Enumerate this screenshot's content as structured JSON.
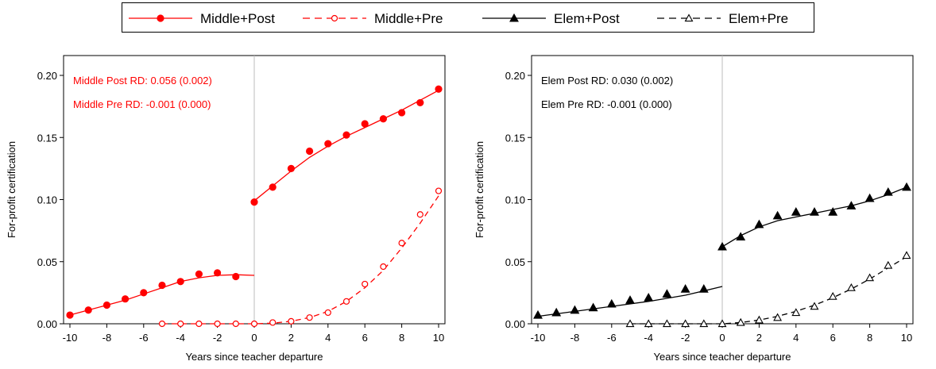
{
  "legend": {
    "placement": "top-center",
    "entries": [
      {
        "label": "Middle+Post",
        "color": "#ff0000",
        "line": "solid",
        "marker": "filled-circle"
      },
      {
        "label": "Middle+Pre",
        "color": "#ff0000",
        "line": "dashed",
        "marker": "hollow-circle"
      },
      {
        "label": "Elem+Post",
        "color": "#000000",
        "line": "solid",
        "marker": "filled-triangle"
      },
      {
        "label": "Elem+Pre",
        "color": "#000000",
        "line": "dashed",
        "marker": "hollow-triangle"
      }
    ]
  },
  "chart_data": [
    {
      "type": "scatter",
      "panel": "left",
      "xlabel": "Years since teacher departure",
      "ylabel": "For-profit certification",
      "xlim": [
        -10,
        10
      ],
      "ylim": [
        0,
        0.2
      ],
      "xticks": [
        -10,
        -8,
        -6,
        -4,
        -2,
        0,
        2,
        4,
        6,
        8,
        10
      ],
      "yticks": [
        "0.00",
        "0.05",
        "0.10",
        "0.15",
        "0.20"
      ],
      "vline": 0,
      "grid": false,
      "annotations": [
        "Middle Post RD: 0.056 (0.002)",
        "Middle Pre RD: -0.001 (0.000)"
      ],
      "annotation_color": "#ff0000",
      "series": [
        {
          "name": "Middle+Post",
          "color": "#ff0000",
          "marker": "filled-circle",
          "line": "solid",
          "x": [
            -10,
            -9,
            -8,
            -7,
            -6,
            -5,
            -4,
            -3,
            -2,
            -1,
            0,
            1,
            2,
            3,
            4,
            5,
            6,
            7,
            8,
            9,
            10
          ],
          "y": [
            0.007,
            0.011,
            0.015,
            0.02,
            0.025,
            0.031,
            0.034,
            0.04,
            0.041,
            0.038,
            0.098,
            0.11,
            0.125,
            0.139,
            0.145,
            0.152,
            0.161,
            0.165,
            0.17,
            0.178,
            0.189
          ],
          "fit_x": [
            -10,
            -9,
            -8,
            -7,
            -6,
            -5,
            -4,
            -3,
            -2,
            -1,
            0
          ],
          "fit_y": [
            0.007,
            0.011,
            0.015,
            0.019,
            0.024,
            0.029,
            0.034,
            0.037,
            0.039,
            0.0395,
            0.039
          ],
          "fit2_x": [
            0,
            1,
            2,
            3,
            4,
            5,
            6,
            7,
            8,
            9,
            10
          ],
          "fit2_y": [
            0.099,
            0.111,
            0.123,
            0.134,
            0.143,
            0.151,
            0.158,
            0.165,
            0.172,
            0.18,
            0.188
          ]
        },
        {
          "name": "Middle+Pre",
          "color": "#ff0000",
          "marker": "hollow-circle",
          "line": "dashed",
          "x": [
            -5,
            -4,
            -3,
            -2,
            -1,
            0,
            1,
            2,
            3,
            4,
            5,
            6,
            7,
            8,
            9,
            10
          ],
          "y": [
            0.0,
            0.0,
            0.0,
            0.0,
            0.0,
            0.0,
            0.001,
            0.002,
            0.005,
            0.009,
            0.018,
            0.032,
            0.046,
            0.065,
            0.088,
            0.107
          ],
          "fit_x": [
            -5,
            -4,
            -3,
            -2,
            -1,
            0,
            1,
            2,
            3,
            4,
            5,
            6,
            7,
            8,
            9,
            10
          ],
          "fit_y": [
            0.0,
            0.0,
            0.0,
            0.0,
            0.0,
            0.0,
            0.0005,
            0.002,
            0.005,
            0.01,
            0.018,
            0.029,
            0.043,
            0.061,
            0.081,
            0.103
          ]
        }
      ]
    },
    {
      "type": "scatter",
      "panel": "right",
      "xlabel": "Years since teacher departure",
      "ylabel": "For-profit certification",
      "xlim": [
        -10,
        10
      ],
      "ylim": [
        0,
        0.2
      ],
      "xticks": [
        -10,
        -8,
        -6,
        -4,
        -2,
        0,
        2,
        4,
        6,
        8,
        10
      ],
      "yticks": [
        "0.00",
        "0.05",
        "0.10",
        "0.15",
        "0.20"
      ],
      "vline": 0,
      "grid": false,
      "annotations": [
        "Elem Post RD: 0.030 (0.002)",
        "Elem Pre RD: -0.001 (0.000)"
      ],
      "annotation_color": "#000000",
      "series": [
        {
          "name": "Elem+Post",
          "color": "#000000",
          "marker": "filled-triangle",
          "line": "solid",
          "x": [
            -10,
            -9,
            -8,
            -7,
            -6,
            -5,
            -4,
            -3,
            -2,
            -1,
            0,
            1,
            2,
            3,
            4,
            5,
            6,
            7,
            8,
            9,
            10
          ],
          "y": [
            0.007,
            0.009,
            0.011,
            0.013,
            0.016,
            0.019,
            0.021,
            0.024,
            0.028,
            0.028,
            0.062,
            0.07,
            0.08,
            0.087,
            0.09,
            0.09,
            0.09,
            0.095,
            0.101,
            0.106,
            0.11
          ],
          "fit_x": [
            -10,
            -8,
            -6,
            -4,
            -2,
            0
          ],
          "fit_y": [
            0.006,
            0.01,
            0.014,
            0.018,
            0.023,
            0.03
          ],
          "fit2_x": [
            0,
            1,
            2,
            3,
            4,
            5,
            6,
            7,
            8,
            9,
            10
          ],
          "fit2_y": [
            0.062,
            0.071,
            0.078,
            0.083,
            0.086,
            0.089,
            0.092,
            0.095,
            0.099,
            0.104,
            0.11
          ]
        },
        {
          "name": "Elem+Pre",
          "color": "#000000",
          "marker": "hollow-triangle",
          "line": "dashed",
          "x": [
            -5,
            -4,
            -3,
            -2,
            -1,
            0,
            1,
            2,
            3,
            4,
            5,
            6,
            7,
            8,
            9,
            10
          ],
          "y": [
            0.0,
            0.0,
            0.0,
            0.0,
            0.0,
            0.0,
            0.001,
            0.003,
            0.005,
            0.009,
            0.014,
            0.022,
            0.029,
            0.037,
            0.047,
            0.055
          ],
          "fit_x": [
            -5,
            -4,
            -3,
            -2,
            -1,
            0,
            1,
            2,
            3,
            4,
            5,
            6,
            7,
            8,
            9,
            10
          ],
          "fit_y": [
            0.0,
            0.0,
            0.0,
            0.0,
            0.0,
            0.0,
            0.001,
            0.003,
            0.006,
            0.01,
            0.015,
            0.021,
            0.028,
            0.036,
            0.045,
            0.054
          ]
        }
      ]
    }
  ]
}
